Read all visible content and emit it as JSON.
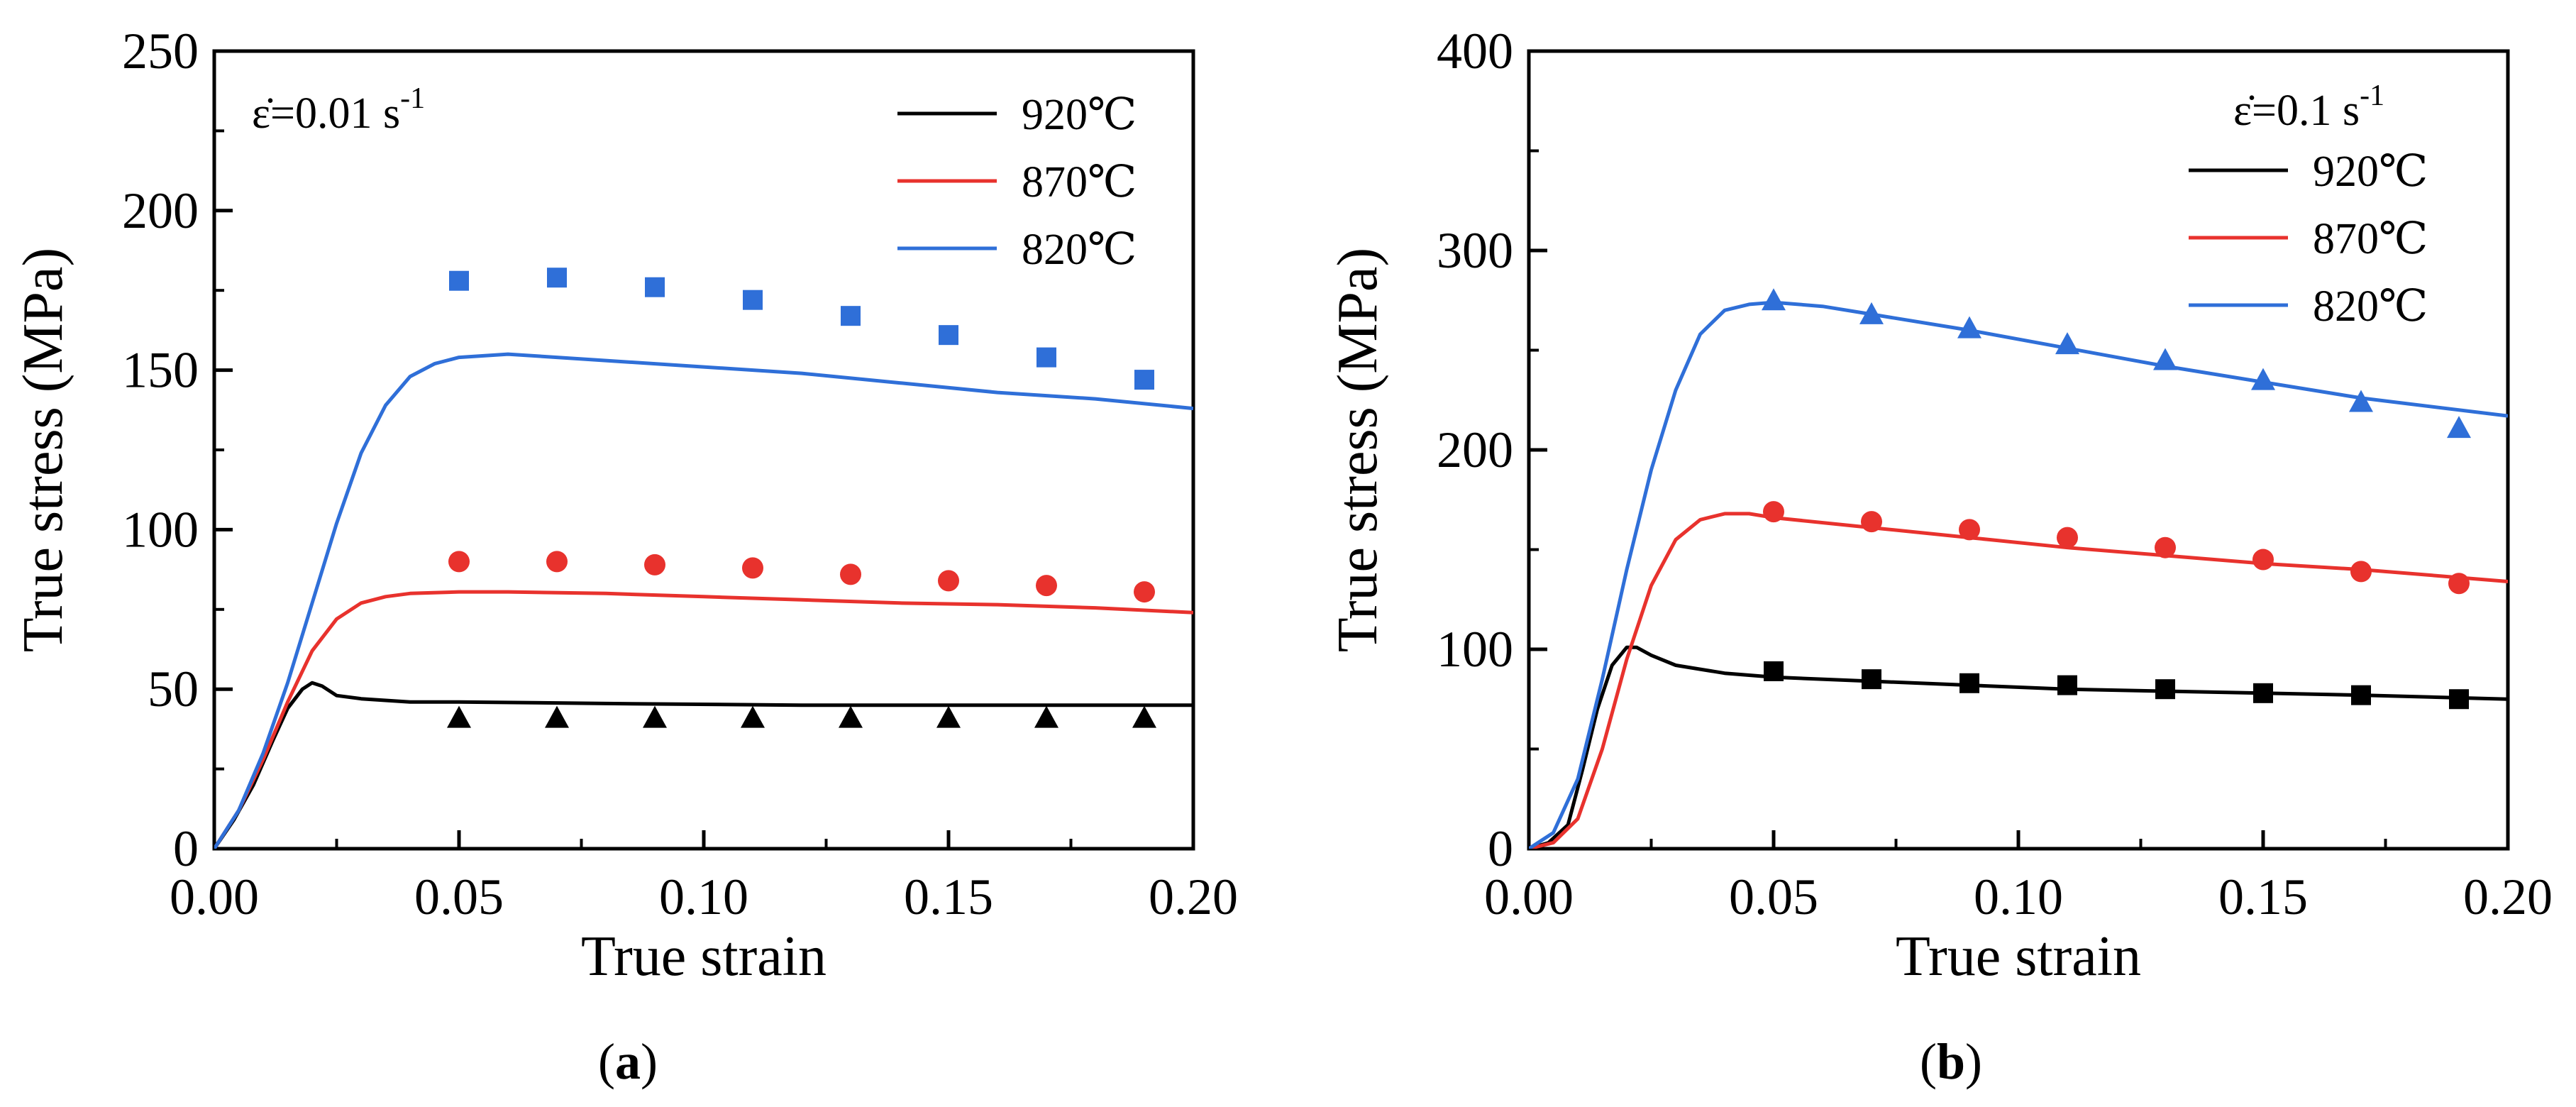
{
  "figure": {
    "captions": [
      "(a)",
      "(b)"
    ]
  },
  "chart_data": [
    {
      "type": "line",
      "panel": "a",
      "caption": "(a)",
      "caption_letter": "a",
      "title": "",
      "xlabel": "True strain",
      "ylabel": "True stress (MPa)",
      "xlim": [
        0,
        0.2
      ],
      "ylim": [
        0,
        250
      ],
      "xticks": [
        0,
        0.05,
        0.1,
        0.15,
        0.2
      ],
      "xtick_labels": [
        "0.00",
        "0.05",
        "0.10",
        "0.15",
        "0.20"
      ],
      "yticks": [
        0,
        50,
        100,
        150,
        200,
        250
      ],
      "ytick_labels": [
        "0",
        "50",
        "100",
        "150",
        "200",
        "250"
      ],
      "strain_rate_label": "ε̇=0.01 s",
      "strain_rate_sup": "-1",
      "legend_position": "top-right",
      "series": [
        {
          "name": "920℃",
          "color": "#000000",
          "marker": "triangle",
          "curve_x": [
            0,
            0.004,
            0.008,
            0.012,
            0.015,
            0.018,
            0.02,
            0.022,
            0.025,
            0.03,
            0.04,
            0.05,
            0.08,
            0.12,
            0.16,
            0.2
          ],
          "curve_y": [
            0,
            9,
            20,
            34,
            44,
            50,
            52,
            51,
            48,
            47,
            46,
            46,
            45.5,
            45,
            45,
            45
          ],
          "points_x": [
            0.05,
            0.07,
            0.09,
            0.11,
            0.13,
            0.15,
            0.17,
            0.19
          ],
          "points_y": [
            41,
            41,
            41,
            41,
            41,
            41,
            41,
            41
          ]
        },
        {
          "name": "870℃",
          "color": "#e8322d",
          "marker": "circle",
          "curve_x": [
            0,
            0.005,
            0.01,
            0.015,
            0.02,
            0.025,
            0.03,
            0.035,
            0.04,
            0.05,
            0.06,
            0.08,
            0.1,
            0.12,
            0.14,
            0.16,
            0.18,
            0.2
          ],
          "curve_y": [
            0,
            12,
            28,
            46,
            62,
            72,
            77,
            79,
            80,
            80.5,
            80.5,
            80,
            79,
            78,
            77,
            76.5,
            75.5,
            74
          ],
          "points_x": [
            0.05,
            0.07,
            0.09,
            0.11,
            0.13,
            0.15,
            0.17,
            0.19
          ],
          "points_y": [
            90,
            90,
            89,
            88,
            86,
            84,
            82.5,
            80.5
          ]
        },
        {
          "name": "820℃",
          "color": "#2f6fd8",
          "marker": "square",
          "curve_x": [
            0,
            0.005,
            0.01,
            0.015,
            0.02,
            0.025,
            0.03,
            0.035,
            0.04,
            0.045,
            0.05,
            0.06,
            0.07,
            0.08,
            0.1,
            0.12,
            0.14,
            0.16,
            0.18,
            0.2
          ],
          "curve_y": [
            0,
            12,
            30,
            52,
            77,
            102,
            124,
            139,
            148,
            152,
            154,
            155,
            154,
            153,
            151,
            149,
            146,
            143,
            141,
            138
          ],
          "points_x": [
            0.05,
            0.07,
            0.09,
            0.11,
            0.13,
            0.15,
            0.17,
            0.19
          ],
          "points_y": [
            178,
            179,
            176,
            172,
            167,
            161,
            154,
            147
          ]
        }
      ]
    },
    {
      "type": "line",
      "panel": "b",
      "caption": "(b)",
      "caption_letter": "b",
      "title": "",
      "xlabel": "True strain",
      "ylabel": "True stress (MPa)",
      "xlim": [
        0,
        0.2
      ],
      "ylim": [
        0,
        400
      ],
      "xticks": [
        0,
        0.05,
        0.1,
        0.15,
        0.2
      ],
      "xtick_labels": [
        "0.00",
        "0.05",
        "0.10",
        "0.15",
        "0.20"
      ],
      "yticks": [
        0,
        100,
        200,
        300,
        400
      ],
      "ytick_labels": [
        "0",
        "100",
        "200",
        "300",
        "400"
      ],
      "strain_rate_label": "ε̇=0.1 s",
      "strain_rate_sup": "-1",
      "legend_position": "top-right",
      "series": [
        {
          "name": "920℃",
          "color": "#000000",
          "marker": "square",
          "curve_x": [
            0,
            0.004,
            0.008,
            0.011,
            0.014,
            0.017,
            0.02,
            0.022,
            0.025,
            0.03,
            0.035,
            0.04,
            0.05,
            0.07,
            0.09,
            0.11,
            0.13,
            0.15,
            0.17,
            0.2
          ],
          "curve_y": [
            0,
            3,
            12,
            40,
            70,
            92,
            101,
            101,
            97,
            92,
            90,
            88,
            86,
            84,
            82,
            80,
            79,
            78,
            77,
            75
          ],
          "points_x": [
            0.05,
            0.07,
            0.09,
            0.11,
            0.13,
            0.15,
            0.17,
            0.19
          ],
          "points_y": [
            89,
            85,
            83,
            82,
            80,
            78,
            77,
            75
          ]
        },
        {
          "name": "870℃",
          "color": "#e8322d",
          "marker": "circle",
          "curve_x": [
            0,
            0.005,
            0.01,
            0.015,
            0.02,
            0.025,
            0.03,
            0.035,
            0.04,
            0.045,
            0.05,
            0.07,
            0.09,
            0.11,
            0.13,
            0.15,
            0.17,
            0.2
          ],
          "curve_y": [
            0,
            3,
            15,
            50,
            95,
            132,
            155,
            165,
            168,
            168,
            166,
            161,
            156,
            151,
            147,
            143,
            140,
            134
          ],
          "points_x": [
            0.05,
            0.07,
            0.09,
            0.11,
            0.13,
            0.15,
            0.17,
            0.19
          ],
          "points_y": [
            169,
            164,
            160,
            156,
            151,
            145,
            139,
            133
          ]
        },
        {
          "name": "820℃",
          "color": "#2f6fd8",
          "marker": "triangle",
          "curve_x": [
            0,
            0.005,
            0.01,
            0.015,
            0.02,
            0.025,
            0.03,
            0.035,
            0.04,
            0.045,
            0.05,
            0.06,
            0.07,
            0.09,
            0.11,
            0.13,
            0.15,
            0.17,
            0.2
          ],
          "curve_y": [
            0,
            8,
            35,
            85,
            140,
            190,
            230,
            258,
            270,
            273,
            274,
            272,
            268,
            260,
            251,
            242,
            234,
            226,
            217
          ],
          "points_x": [
            0.05,
            0.07,
            0.09,
            0.11,
            0.13,
            0.15,
            0.17,
            0.19
          ],
          "points_y": [
            275,
            268,
            261,
            253,
            245,
            235,
            224,
            211
          ]
        }
      ]
    }
  ]
}
